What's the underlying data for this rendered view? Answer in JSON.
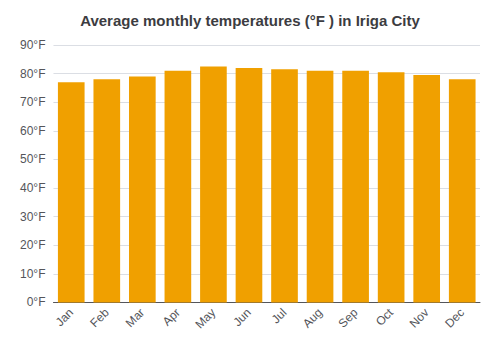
{
  "chart_data": {
    "type": "bar",
    "title": "Average monthly temperatures (°F ) in Iriga City",
    "categories": [
      "Jan",
      "Feb",
      "Mar",
      "Apr",
      "May",
      "Jun",
      "Jul",
      "Aug",
      "Sep",
      "Oct",
      "Nov",
      "Dec"
    ],
    "values": [
      77.0,
      78.0,
      79.0,
      81.0,
      82.5,
      82.0,
      81.5,
      81.0,
      81.0,
      80.5,
      79.5,
      78.0
    ],
    "color": "#F0A000",
    "ylim": [
      0,
      90
    ],
    "yticks": [
      {
        "value": 0,
        "label": "0°F"
      },
      {
        "value": 10,
        "label": "10°F"
      },
      {
        "value": 20,
        "label": "20°F"
      },
      {
        "value": 30,
        "label": "30°F"
      },
      {
        "value": 40,
        "label": "40°F"
      },
      {
        "value": 50,
        "label": "50°F"
      },
      {
        "value": 60,
        "label": "60°F"
      },
      {
        "value": 70,
        "label": "70°F"
      },
      {
        "value": 80,
        "label": "80°F"
      },
      {
        "value": 90,
        "label": "90°F"
      }
    ],
    "grid": true
  }
}
